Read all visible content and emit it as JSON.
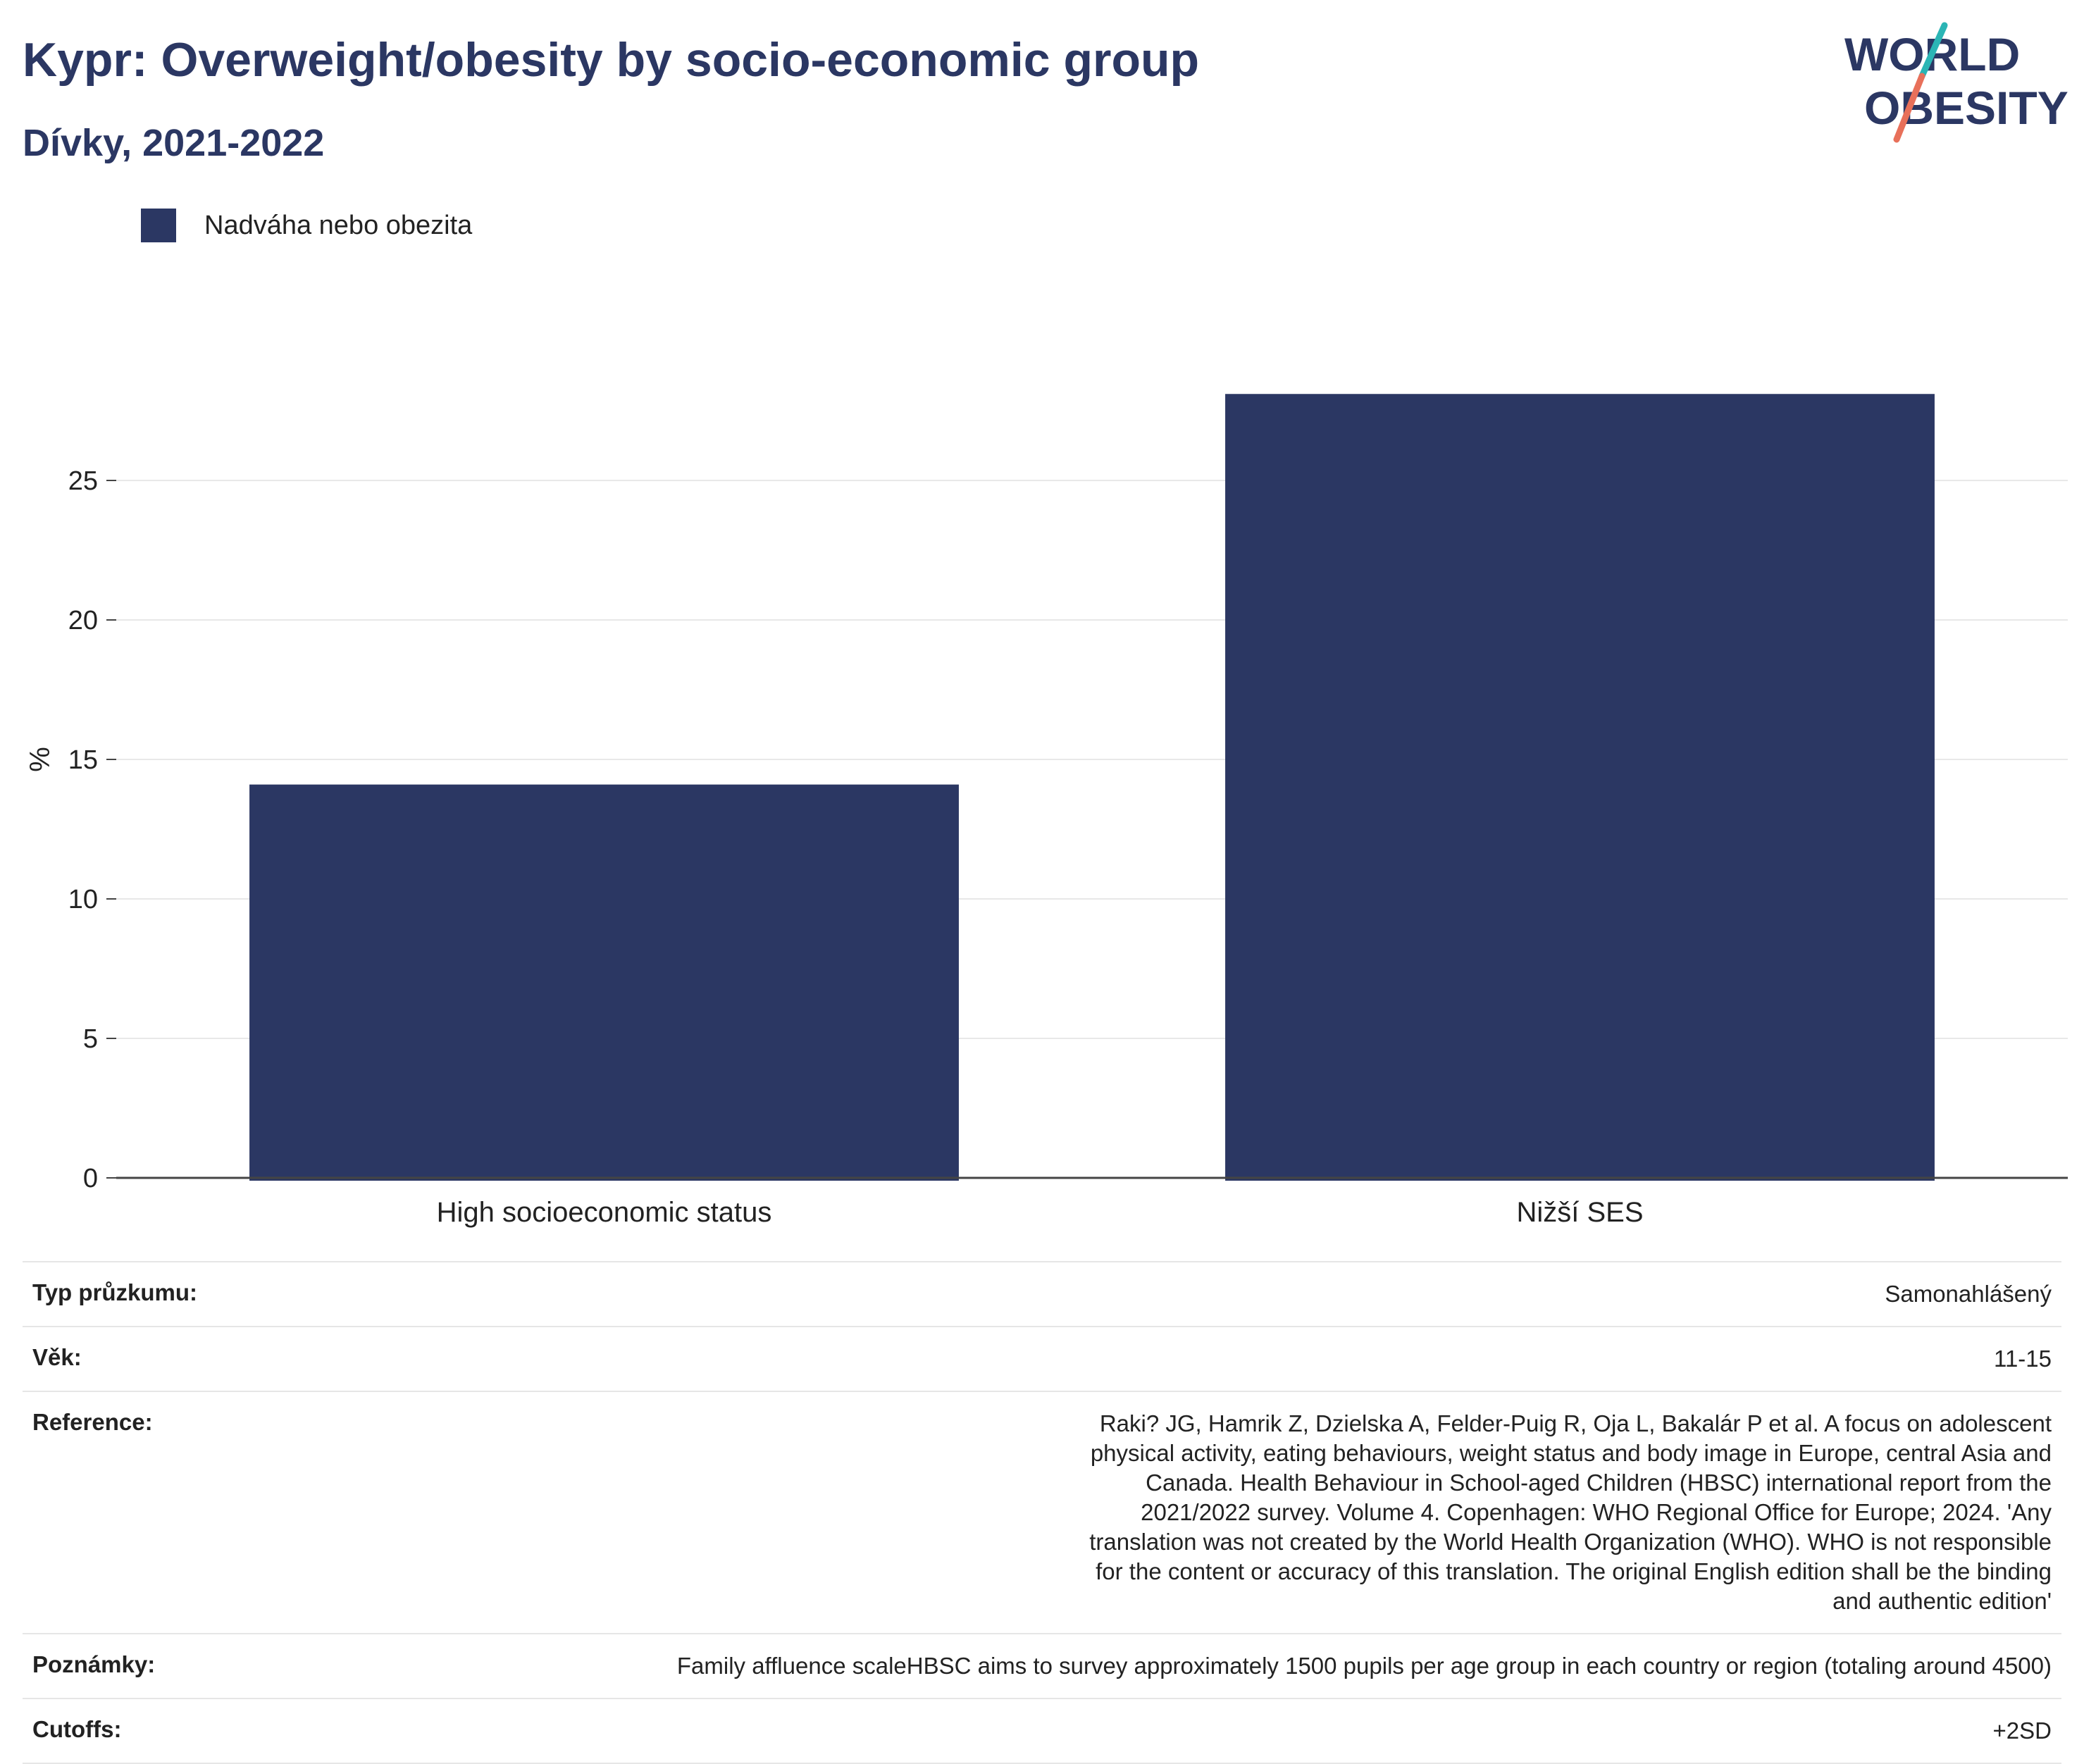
{
  "title": "Kypr: Overweight/obesity by socio-economic group",
  "subtitle": "Dívky, 2021-2022",
  "logo": {
    "line1": "WORLD",
    "line2": "OBESITY"
  },
  "colors": {
    "bar": "#2b3763",
    "title": "#2b3763",
    "logo_teal": "#2bb5b5",
    "logo_coral": "#e8705a"
  },
  "legend": {
    "label": "Nadváha nebo obezita"
  },
  "chart_data": {
    "type": "bar",
    "categories": [
      "High socioeconomic status",
      "Nižší SES"
    ],
    "series": [
      {
        "name": "Nadváha nebo obezita",
        "values": [
          14.1,
          28.1
        ]
      }
    ],
    "ylabel": "%",
    "xlabel": "",
    "ylim": [
      0,
      30
    ],
    "yticks": [
      0,
      5,
      10,
      15,
      20,
      25
    ],
    "grid": true,
    "legend_position": "top-left"
  },
  "meta": [
    {
      "key": "Typ průzkumu:",
      "value": "Samonahlášený"
    },
    {
      "key": "Věk:",
      "value": "11-15"
    },
    {
      "key": "Reference:",
      "value": "Raki? JG, Hamrik Z, Dzielska A, Felder-Puig R, Oja L, Bakalár P et al. A focus on adolescent physical activity, eating behaviours, weight status and body image in Europe, central Asia and Canada. Health Behaviour in School-aged Children (HBSC) international report from the 2021/2022 survey. Volume 4. Copenhagen: WHO Regional Office for Europe; 2024. 'Any translation was not created by the World Health Organization (WHO). WHO is not responsible for the content or accuracy of this translation. The original English edition shall be the binding and authentic edition'"
    },
    {
      "key": "Poznámky:",
      "value": "Family affluence scaleHBSC aims to survey approximately 1500 pupils per age group in each country or region (totaling around 4500)"
    },
    {
      "key": "Cutoffs:",
      "value": "+2SD"
    }
  ]
}
